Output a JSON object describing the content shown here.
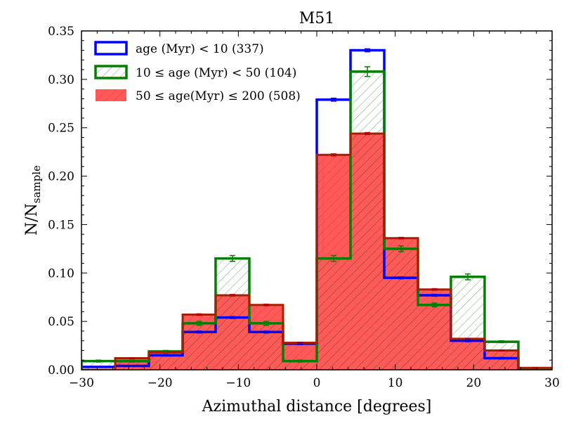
{
  "chart_data": {
    "type": "histogram",
    "title": "M51",
    "xlabel": "Azimuthal distance [degrees]",
    "ylabel": "N/N",
    "ylabel_sub": "sample",
    "xlim": [
      -30,
      30
    ],
    "ylim": [
      0,
      0.35
    ],
    "xticks": [
      -30,
      -20,
      -10,
      0,
      10,
      20,
      30
    ],
    "xtick_labels": [
      "−30",
      "−20",
      "−10",
      "0",
      "10",
      "20",
      "30"
    ],
    "yticks": [
      0.0,
      0.05,
      0.1,
      0.15,
      0.2,
      0.25,
      0.3,
      0.35
    ],
    "ytick_labels": [
      "0.00",
      "0.05",
      "0.10",
      "0.15",
      "0.20",
      "0.25",
      "0.30",
      "0.35"
    ],
    "bin_edges": [
      -30,
      -25.7,
      -21.4,
      -17.1,
      -12.9,
      -8.6,
      -4.3,
      0,
      4.3,
      8.6,
      12.9,
      17.1,
      21.4,
      25.7,
      30
    ],
    "legend_position": "top-left",
    "series": [
      {
        "name": "age (Myr) < 10 (337)",
        "style": "step-outline",
        "color": "#0000ff",
        "values": [
          0.003,
          0.004,
          0.015,
          0.039,
          0.054,
          0.039,
          0.027,
          0.279,
          0.33,
          0.095,
          0.077,
          0.03,
          0.012,
          0.0
        ],
        "errors": [
          0.0005,
          0.0005,
          0.0008,
          0.001,
          0.001,
          0.001,
          0.001,
          0.0015,
          0.0015,
          0.001,
          0.001,
          0.001,
          0.0008,
          0.0
        ]
      },
      {
        "name": "10 ≤ age (Myr) < 50 (104)",
        "style": "step-outline-hatched",
        "color": "#007f00",
        "values": [
          0.009,
          0.009,
          0.019,
          0.048,
          0.115,
          0.048,
          0.009,
          0.115,
          0.308,
          0.125,
          0.067,
          0.096,
          0.029,
          0.0
        ],
        "errors": [
          0.001,
          0.001,
          0.001,
          0.002,
          0.003,
          0.002,
          0.001,
          0.003,
          0.005,
          0.003,
          0.002,
          0.003,
          0.001,
          0.0
        ]
      },
      {
        "name": "50 ≤ age(Myr) ≤ 200 (508)",
        "style": "filled",
        "color": "#ff0000",
        "values": [
          0.0,
          0.012,
          0.018,
          0.057,
          0.077,
          0.067,
          0.028,
          0.222,
          0.244,
          0.136,
          0.083,
          0.032,
          0.02,
          0.002
        ],
        "errors": [
          0.0,
          0.0004,
          0.0005,
          0.0008,
          0.0008,
          0.0008,
          0.0005,
          0.001,
          0.001,
          0.0008,
          0.0008,
          0.0005,
          0.0005,
          0.0002
        ]
      }
    ]
  }
}
